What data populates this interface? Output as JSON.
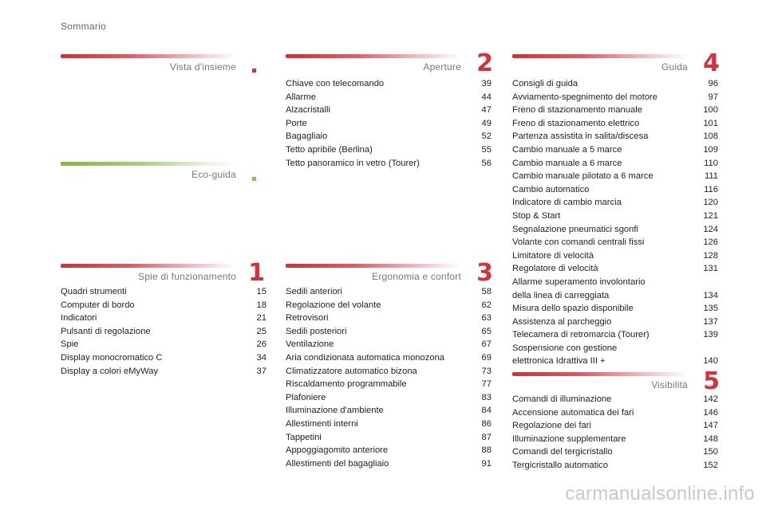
{
  "header": {
    "title": "Sommario"
  },
  "sections": [
    {
      "id": "vista",
      "title": "Vista d'insieme",
      "number": "",
      "color": "red",
      "items": []
    },
    {
      "id": "eco",
      "title": "Eco-guida",
      "number": "",
      "color": "green",
      "items": []
    },
    {
      "id": "spie",
      "title": "Spie di funzionamento",
      "number": "1",
      "color": "red",
      "items": [
        {
          "label": "Quadri strumenti",
          "page": "15"
        },
        {
          "label": "Computer di bordo",
          "page": "18"
        },
        {
          "label": "Indicatori",
          "page": "21"
        },
        {
          "label": "Pulsanti di regolazione",
          "page": "25"
        },
        {
          "label": "Spie",
          "page": "26"
        },
        {
          "label": "Display monocromatico C",
          "page": "34"
        },
        {
          "label": "Display a colori eMyWay",
          "page": "37"
        }
      ]
    },
    {
      "id": "aperture",
      "title": "Aperture",
      "number": "2",
      "color": "red",
      "items": [
        {
          "label": "Chiave con telecomando",
          "page": "39"
        },
        {
          "label": "Allarme",
          "page": "44"
        },
        {
          "label": "Alzacristalli",
          "page": "47"
        },
        {
          "label": "Porte",
          "page": "49"
        },
        {
          "label": "Bagagliaio",
          "page": "52"
        },
        {
          "label": "Tetto apribile (Berlina)",
          "page": "55"
        },
        {
          "label": "Tetto panoramico in vetro (Tourer)",
          "page": "56"
        }
      ]
    },
    {
      "id": "ergonomia",
      "title": "Ergonomia e confort",
      "number": "3",
      "color": "red",
      "items": [
        {
          "label": "Sedili anteriori",
          "page": "58"
        },
        {
          "label": "Regolazione del volante",
          "page": "62"
        },
        {
          "label": "Retrovisori",
          "page": "63"
        },
        {
          "label": "Sedili posteriori",
          "page": "65"
        },
        {
          "label": "Ventilazione",
          "page": "67"
        },
        {
          "label": "Aria condizionata automatica monozona",
          "page": "69"
        },
        {
          "label": "Climatizzatore automatico bizona",
          "page": "73"
        },
        {
          "label": "Riscaldamento programmabile",
          "page": "77"
        },
        {
          "label": "Plafoniere",
          "page": "83"
        },
        {
          "label": "Illuminazione d'ambiente",
          "page": "84"
        },
        {
          "label": "Allestimenti interni",
          "page": "86"
        },
        {
          "label": "Tappetini",
          "page": "87"
        },
        {
          "label": "Appoggiagomito anteriore",
          "page": "88"
        },
        {
          "label": "Allestimenti del bagagliaio",
          "page": "91"
        }
      ]
    },
    {
      "id": "guida",
      "title": "Guida",
      "number": "4",
      "color": "red",
      "items": [
        {
          "label": "Consigli di guida",
          "page": "96"
        },
        {
          "label": "Avviamento-spegnimento del motore",
          "page": "97"
        },
        {
          "label": "Freno di stazionamento manuale",
          "page": "100"
        },
        {
          "label": "Freno di stazionamento elettrico",
          "page": "101"
        },
        {
          "label": "Partenza assistita in salita/discesa",
          "page": "108"
        },
        {
          "label": "Cambio manuale a 5 marce",
          "page": "109"
        },
        {
          "label": "Cambio manuale a 6 marce",
          "page": "110"
        },
        {
          "label": "Cambio manuale pilotato a 6 marce",
          "page": "111"
        },
        {
          "label": "Cambio automatico",
          "page": "116"
        },
        {
          "label": "Indicatore di cambio marcia",
          "page": "120"
        },
        {
          "label": "Stop & Start",
          "page": "121"
        },
        {
          "label": "Segnalazione pneumatici sgonfi",
          "page": "124"
        },
        {
          "label": "Volante con comandi centrali fissi",
          "page": "126"
        },
        {
          "label": "Limitatore di velocità",
          "page": "128"
        },
        {
          "label": "Regolatore di velocità",
          "page": "131"
        },
        {
          "label": "Allarme superamento involontario\ndella linea di carreggiata",
          "page": "134"
        },
        {
          "label": "Misura dello spazio disponibile",
          "page": "135"
        },
        {
          "label": "Assistenza al parcheggio",
          "page": "137"
        },
        {
          "label": "Telecamera di retromarcia (Tourer)",
          "page": "139"
        },
        {
          "label": "Sospensione con gestione\nelettronica Idrattiva III +",
          "page": "140"
        }
      ]
    },
    {
      "id": "visibilita",
      "title": "Visibilità",
      "number": "5",
      "color": "red",
      "items": [
        {
          "label": "Comandi di illuminazione",
          "page": "142"
        },
        {
          "label": "Accensione automatica dei fari",
          "page": "146"
        },
        {
          "label": "Regolazione dei fari",
          "page": "147"
        },
        {
          "label": "Illuminazione supplementare",
          "page": "148"
        },
        {
          "label": "Comandi del tergicristallo",
          "page": "150"
        },
        {
          "label": "Tergicristallo automatico",
          "page": "152"
        }
      ]
    }
  ],
  "watermark": "carmanualsonline.info",
  "colors": {
    "accent_red": "#d6303c",
    "accent_green": "#8cc04f"
  }
}
